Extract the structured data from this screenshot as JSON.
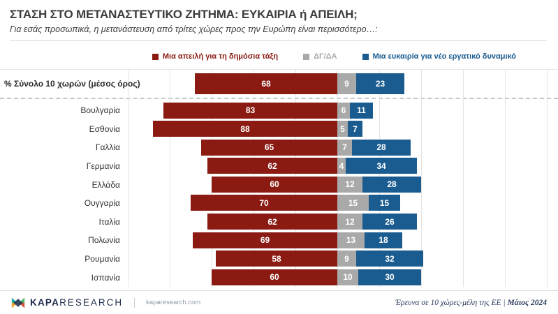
{
  "header": {
    "title": "ΣΤΑΣΗ ΣΤΟ ΜΕΤΑΝΑΣΤΕΥΤΙΚΟ ΖΗΤΗΜΑ: ΕΥΚΑΙΡΙΑ ή ΑΠΕΙΛΗ;",
    "subtitle": "Για εσάς προσωπικά, η μετανάστευση από τρίτες χώρες προς την Ευρώπη είναι περισσότερο…:"
  },
  "legend": {
    "items": [
      {
        "label": "Μια απειλή για τη δημόσια τάξη",
        "color": "#8a1a12"
      },
      {
        "label": "ΔΓ/ΔΑ",
        "color": "#a9a9a9"
      },
      {
        "label": "Μια ευκαιρία για νέο εργατικό δυναμικό",
        "color": "#1b5c90"
      }
    ]
  },
  "chart_data": {
    "type": "bar",
    "orientation": "horizontal-diverging-stacked",
    "unit": "%",
    "grid": true,
    "gridline_step_units": 20,
    "axis": {
      "left_max": 100,
      "right_max": 100,
      "anchor": "end of threat segment aligned for all rows"
    },
    "total_row": {
      "label": "% Σύνολο 10 χωρών (μέσος όρος)",
      "values": [
        68,
        9,
        23
      ]
    },
    "categories": [
      "Βουλγαρία",
      "Εσθονία",
      "Γαλλία",
      "Γερμανία",
      "Ελλάδα",
      "Ουγγαρία",
      "Ιταλία",
      "Πολωνία",
      "Ρουμανία",
      "Ισπανία"
    ],
    "series": [
      {
        "name": "Μια απειλή για τη δημόσια τάξη",
        "color": "#8a1a12",
        "values": [
          83,
          88,
          65,
          62,
          60,
          70,
          62,
          69,
          58,
          60
        ]
      },
      {
        "name": "ΔΓ/ΔΑ",
        "color": "#a9a9a9",
        "values": [
          6,
          5,
          7,
          4,
          12,
          15,
          12,
          13,
          9,
          10
        ]
      },
      {
        "name": "Μια ευκαιρία για νέο εργατικό δυναμικό",
        "color": "#1b5c90",
        "values": [
          11,
          7,
          28,
          34,
          28,
          15,
          26,
          18,
          32,
          30
        ]
      }
    ]
  },
  "footer": {
    "brand_kapa": "KAPA",
    "brand_research": "RESEARCH",
    "website": "kaparesearch.com",
    "note_text": "Έρευνα σε 10 χώρες-μέλη της ΕΕ",
    "note_separator": "|",
    "note_date": "Μάιος 2024"
  }
}
